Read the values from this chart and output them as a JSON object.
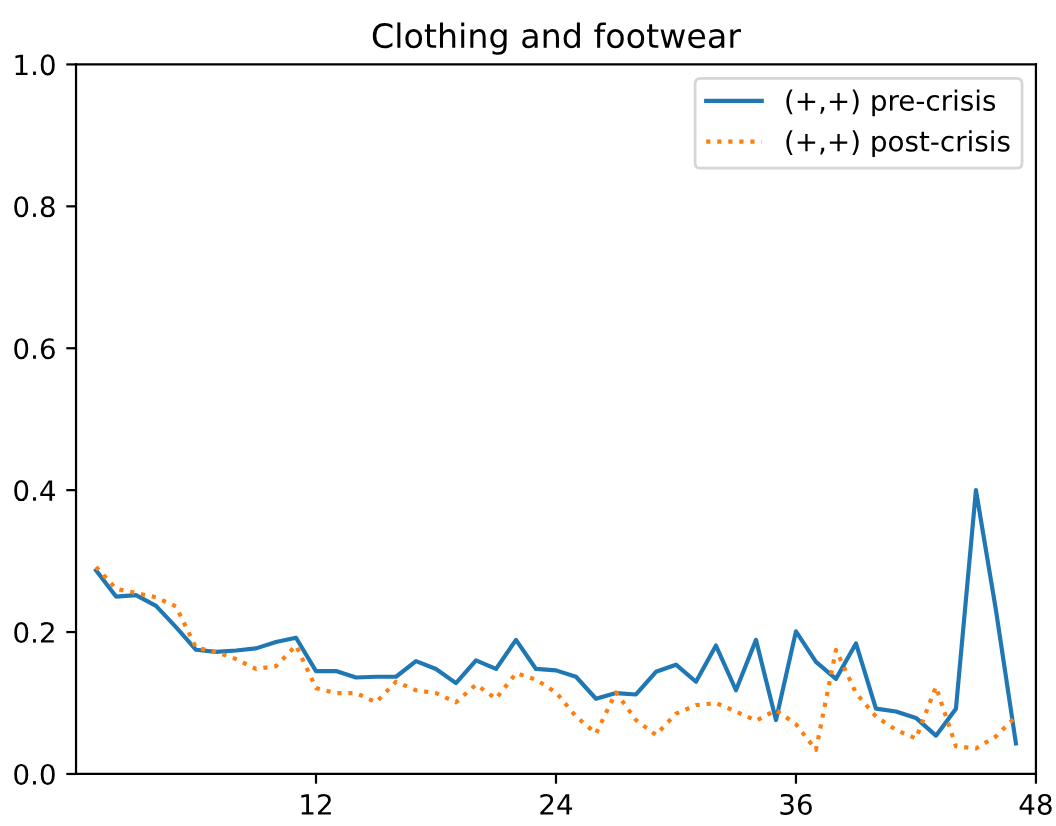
{
  "chart_data": {
    "type": "line",
    "title": "Clothing and footwear",
    "x": [
      1,
      2,
      3,
      4,
      5,
      6,
      7,
      8,
      9,
      10,
      11,
      12,
      13,
      14,
      15,
      16,
      17,
      18,
      19,
      20,
      21,
      22,
      23,
      24,
      25,
      26,
      27,
      28,
      29,
      30,
      31,
      32,
      33,
      34,
      35,
      36,
      37,
      38,
      39,
      40,
      41,
      42,
      43,
      44,
      45,
      46,
      47
    ],
    "series": [
      {
        "name": "(+,+) pre-crisis",
        "color": "#1f77b4",
        "line_style": "solid",
        "values": [
          0.287,
          0.25,
          0.252,
          0.237,
          0.207,
          0.175,
          0.172,
          0.174,
          0.177,
          0.186,
          0.192,
          0.145,
          0.145,
          0.136,
          0.137,
          0.137,
          0.159,
          0.148,
          0.128,
          0.16,
          0.148,
          0.189,
          0.148,
          0.146,
          0.137,
          0.106,
          0.114,
          0.112,
          0.144,
          0.154,
          0.13,
          0.181,
          0.118,
          0.189,
          0.076,
          0.201,
          0.158,
          0.134,
          0.184,
          0.092,
          0.088,
          0.079,
          0.054,
          0.092,
          0.4,
          0.231,
          0.043
        ]
      },
      {
        "name": "(+,+) post-crisis",
        "color": "#ff7f0e",
        "line_style": "dotted",
        "values": [
          0.292,
          0.261,
          0.255,
          0.249,
          0.236,
          0.178,
          0.172,
          0.162,
          0.148,
          0.152,
          0.181,
          0.121,
          0.114,
          0.114,
          0.101,
          0.13,
          0.118,
          0.114,
          0.101,
          0.126,
          0.106,
          0.142,
          0.133,
          0.115,
          0.081,
          0.057,
          0.115,
          0.076,
          0.055,
          0.085,
          0.097,
          0.1,
          0.088,
          0.075,
          0.09,
          0.07,
          0.034,
          0.175,
          0.114,
          0.081,
          0.062,
          0.05,
          0.123,
          0.039,
          0.036,
          0.053,
          0.081
        ]
      }
    ],
    "xlim": [
      0,
      48
    ],
    "xticks": [
      12,
      24,
      36,
      48
    ],
    "ylim": [
      0.0,
      1.0
    ],
    "yticks": [
      {
        "value": 0,
        "label": "0.0"
      },
      0.2,
      0.4,
      0.6,
      0.8,
      {
        "value": 1,
        "label": "1.0"
      }
    ],
    "grid": false,
    "legend": "top right"
  }
}
